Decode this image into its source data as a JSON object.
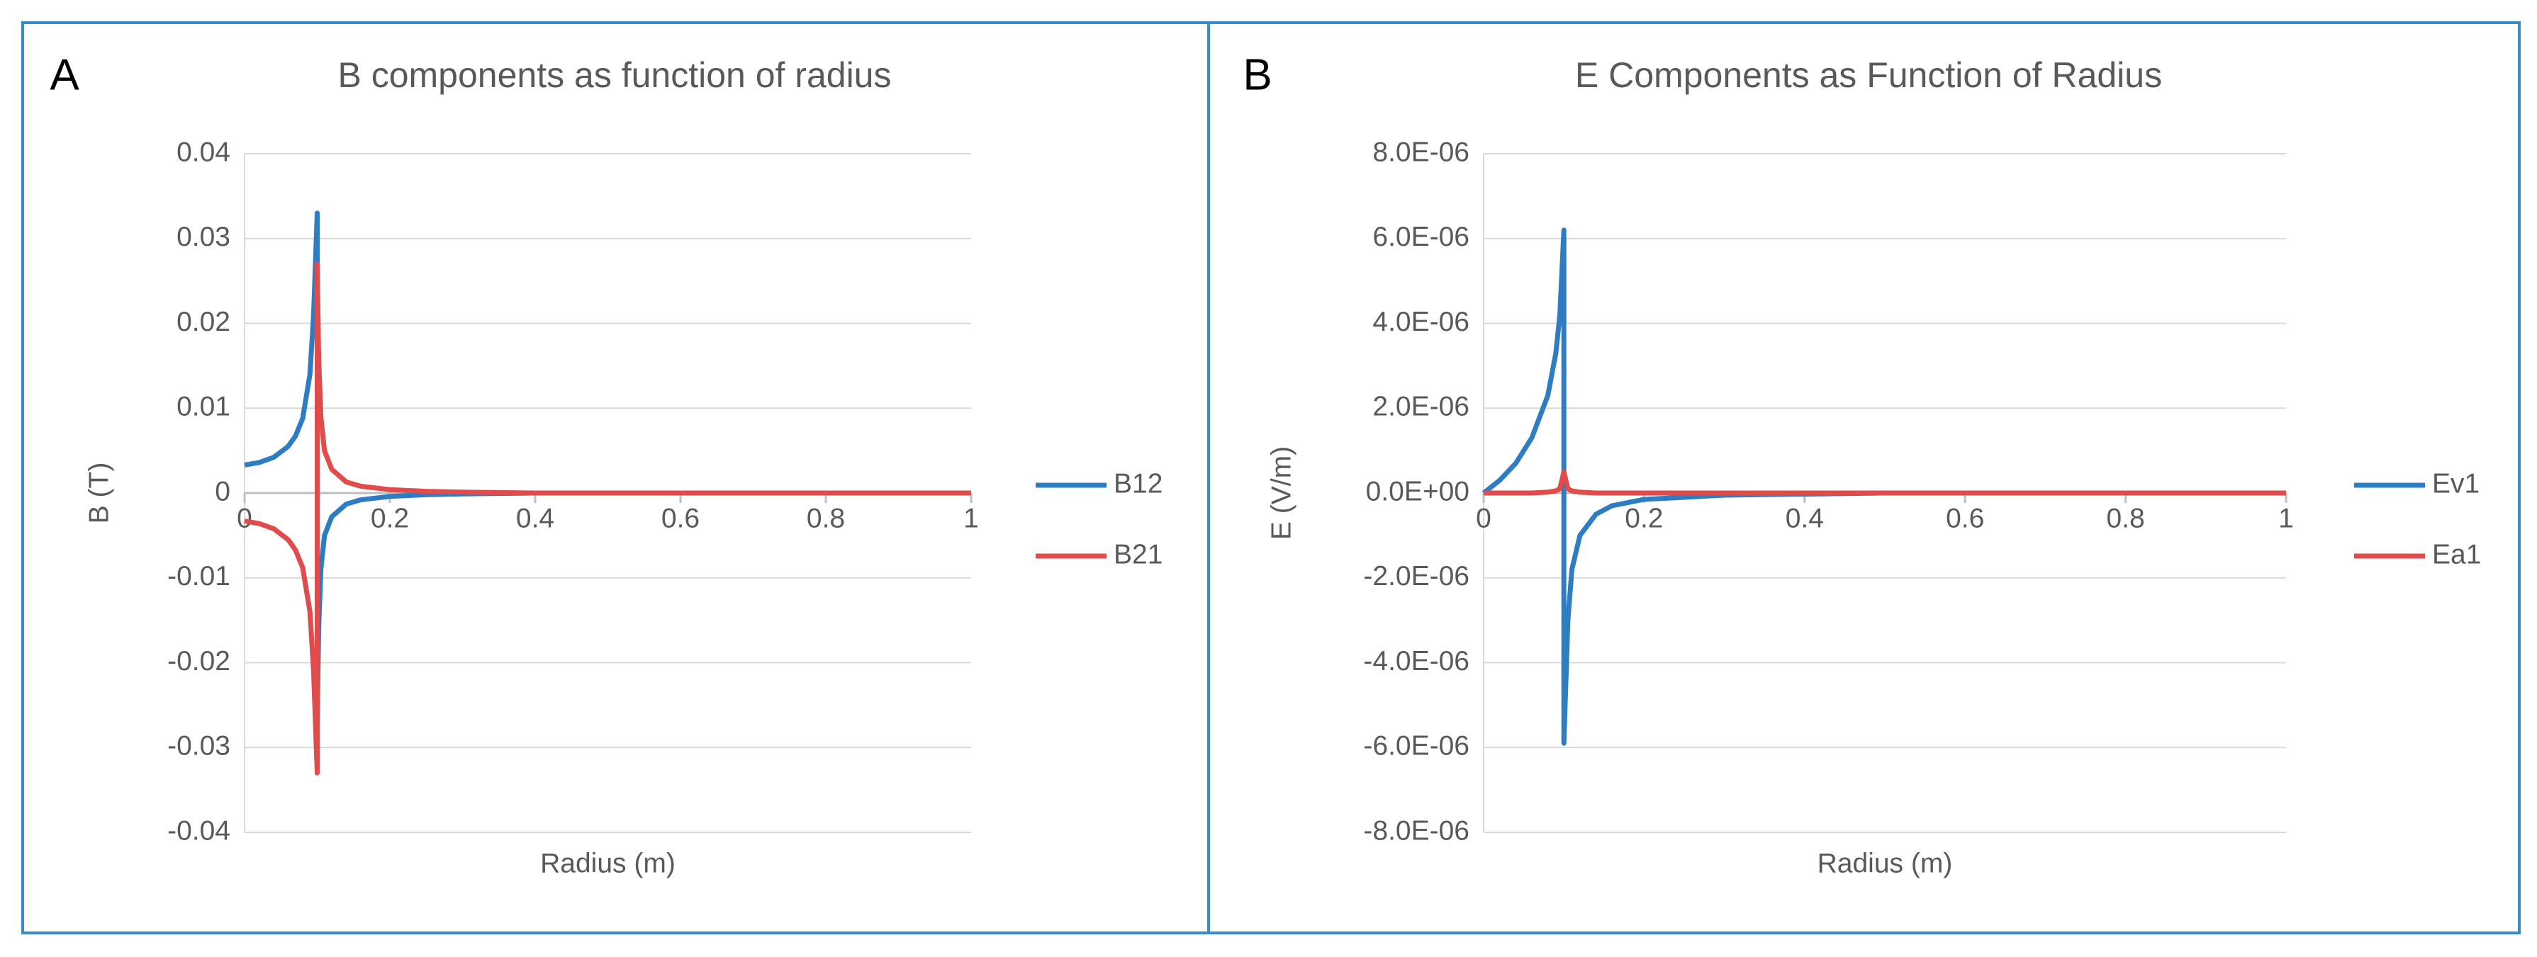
{
  "chart_data": [
    {
      "type": "line",
      "panel": "A",
      "title": "B components as function of radius",
      "x_label": "Radius (m)",
      "y_label": "B (T)",
      "x": [
        0,
        0.02,
        0.04,
        0.06,
        0.07,
        0.08,
        0.09,
        0.095,
        0.1,
        0.1,
        0.102,
        0.105,
        0.11,
        0.12,
        0.14,
        0.16,
        0.2,
        0.25,
        0.3,
        0.4,
        0.6,
        0.8,
        1
      ],
      "series": [
        {
          "name": "B12",
          "color": "#2e7dc2",
          "values": [
            0.0033,
            0.0036,
            0.0042,
            0.0055,
            0.0067,
            0.0088,
            0.014,
            0.021,
            0.033,
            -0.027,
            -0.016,
            -0.009,
            -0.005,
            -0.0028,
            -0.0013,
            -0.0008,
            -0.0004,
            -0.0002,
            -0.0001,
            0,
            0,
            0,
            0
          ]
        },
        {
          "name": "B21",
          "color": "#e04b4b",
          "values": [
            -0.0033,
            -0.0036,
            -0.0042,
            -0.0055,
            -0.0067,
            -0.0088,
            -0.014,
            -0.021,
            -0.033,
            0.027,
            0.016,
            0.009,
            0.005,
            0.0028,
            0.0013,
            0.0008,
            0.0004,
            0.0002,
            0.0001,
            0,
            0,
            0,
            0
          ]
        }
      ],
      "xlim": [
        0,
        1
      ],
      "xticks": [
        0,
        0.2,
        0.4,
        0.6,
        0.8,
        1
      ],
      "ylim": [
        -0.04,
        0.04
      ],
      "yticks": [
        0.04,
        0.03,
        0.02,
        0.01,
        0,
        -0.01,
        -0.02,
        -0.03,
        -0.04
      ],
      "grid": true,
      "legend": "right"
    },
    {
      "type": "line",
      "panel": "B",
      "title": "E Components as Function of Radius",
      "x_label": "Radius (m)",
      "y_label": "E (V/m)",
      "x": [
        0,
        0.02,
        0.04,
        0.06,
        0.08,
        0.09,
        0.095,
        0.1,
        0.1,
        0.105,
        0.11,
        0.12,
        0.14,
        0.16,
        0.2,
        0.3,
        0.5,
        0.8,
        1
      ],
      "series": [
        {
          "name": "Ev1",
          "color": "#2e7dc2",
          "values": [
            0,
            3e-07,
            7e-07,
            1.3e-06,
            2.3e-06,
            3.3e-06,
            4.2e-06,
            6.2e-06,
            -5.9e-06,
            -3e-06,
            -1.8e-06,
            -1e-06,
            -5e-07,
            -3e-07,
            -1.5e-07,
            -5e-08,
            0,
            0,
            0
          ]
        },
        {
          "name": "Ea1",
          "color": "#e04b4b",
          "values": [
            0,
            0,
            0,
            0,
            2e-08,
            5e-08,
            1e-07,
            5e-07,
            5e-07,
            1e-07,
            5e-08,
            2e-08,
            0,
            0,
            0,
            0,
            0,
            0,
            0
          ]
        }
      ],
      "xlim": [
        0,
        1
      ],
      "xticks": [
        0,
        0.2,
        0.4,
        0.6,
        0.8,
        1
      ],
      "ylim": [
        -8e-06,
        8e-06
      ],
      "yticks": [
        {
          "value": 8e-06,
          "label": "8.0E-06"
        },
        {
          "value": 6e-06,
          "label": "6.0E-06"
        },
        {
          "value": 4e-06,
          "label": "4.0E-06"
        },
        {
          "value": 2e-06,
          "label": "2.0E-06"
        },
        {
          "value": 0,
          "label": "0.0E+00"
        },
        {
          "value": -2e-06,
          "label": "-2.0E-06"
        },
        {
          "value": -4e-06,
          "label": "-4.0E-06"
        },
        {
          "value": -6e-06,
          "label": "-6.0E-06"
        },
        {
          "value": -8e-06,
          "label": "-8.0E-06"
        }
      ],
      "grid": true,
      "legend": "right"
    }
  ]
}
